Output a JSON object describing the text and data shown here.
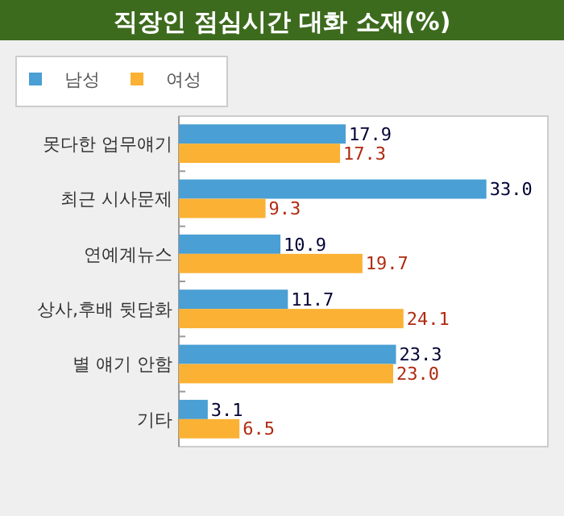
{
  "chart_data": {
    "type": "bar",
    "orientation": "horizontal",
    "title": "직장인 점심시간 대화 소재(%)",
    "categories": [
      "못다한 업무얘기",
      "최근 시사문제",
      "연예계뉴스",
      "상사,후배 뒷담화",
      "별 얘기 안함",
      "기타"
    ],
    "legend": "top left",
    "series": [
      {
        "name": "남성",
        "color": "#4a9fd4",
        "values": [
          17.9,
          33.0,
          10.9,
          11.7,
          23.3,
          3.1
        ],
        "value_labels": [
          "17.9",
          "33.0",
          "10.9",
          "11.7",
          "23.3",
          "3.1"
        ]
      },
      {
        "name": "여성",
        "color": "#fbb133",
        "values": [
          17.3,
          9.3,
          19.7,
          24.1,
          23.0,
          6.5
        ],
        "value_labels": [
          "17.3",
          "9.3",
          "19.7",
          "24.1",
          "23.0",
          "6.5"
        ]
      }
    ]
  }
}
